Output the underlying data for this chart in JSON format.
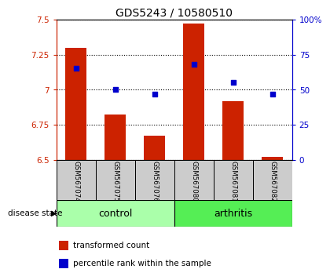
{
  "title": "GDS5243 / 10580510",
  "samples": [
    "GSM567074",
    "GSM567075",
    "GSM567076",
    "GSM567080",
    "GSM567081",
    "GSM567082"
  ],
  "bar_values": [
    7.3,
    6.82,
    6.67,
    7.47,
    6.92,
    6.52
  ],
  "percentile_values": [
    65,
    50,
    47,
    68,
    55,
    47
  ],
  "ylim_left": [
    6.5,
    7.5
  ],
  "ylim_right": [
    0,
    100
  ],
  "yticks_left": [
    6.5,
    6.75,
    7.0,
    7.25,
    7.5
  ],
  "ytick_labels_left": [
    "6.5",
    "6.75",
    "7",
    "7.25",
    "7.5"
  ],
  "yticks_right": [
    0,
    25,
    50,
    75,
    100
  ],
  "ytick_labels_right": [
    "0",
    "25",
    "50",
    "75",
    "100%"
  ],
  "bar_color": "#cc2200",
  "dot_color": "#0000cc",
  "bar_base": 6.5,
  "disease_state_label": "disease state",
  "legend_bar_label": "transformed count",
  "legend_dot_label": "percentile rank within the sample",
  "xlabel_bg": "#cccccc",
  "control_color": "#aaffaa",
  "arthritis_color": "#55ee55",
  "title_fontsize": 10
}
